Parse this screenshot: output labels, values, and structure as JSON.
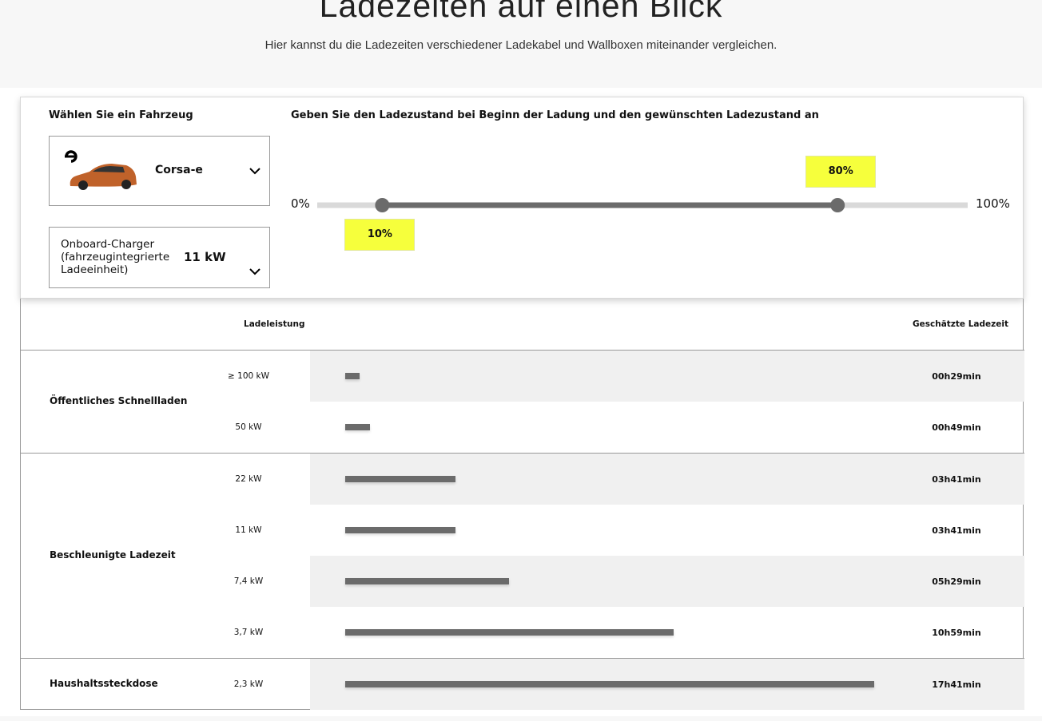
{
  "header": {
    "title": "Ladezeiten auf einen Blick",
    "subtitle": "Hier kannst du die Ladezeiten verschiedener Ladekabel und Wallboxen miteinander vergleichen."
  },
  "vehicle": {
    "label": "Wählen Sie ein Fahrzeug",
    "model": "Corsa-e",
    "charger_name": "Onboard-Charger (fahrzeugintegrierte Ladeeinheit)",
    "charger_power": "11 kW"
  },
  "slider": {
    "label": "Geben Sie den Ladezustand bei Beginn der Ladung und den gewünschten Ladezustand an",
    "min": {
      "value": 0,
      "label": "0%"
    },
    "max": {
      "value": 100,
      "label": "100%"
    },
    "start": {
      "value": 10,
      "label": "10%"
    },
    "end": {
      "value": 80,
      "label": "80%"
    }
  },
  "table": {
    "power_header": "Ladeleistung",
    "time_header": "Geschätzte Ladezeit",
    "groups": [
      {
        "name": "Öffentliches Schnellladen",
        "rows": [
          {
            "power": "≥ 100 kW",
            "time": {
              "value": 29,
              "label": "00h29min"
            }
          },
          {
            "power": "50 kW",
            "time": {
              "value": 49,
              "label": "00h49min"
            }
          }
        ]
      },
      {
        "name": "Beschleunigte Ladezeit",
        "rows": [
          {
            "power": "22 kW",
            "time": {
              "value": 221,
              "label": "03h41min"
            }
          },
          {
            "power": "11 kW",
            "time": {
              "value": 221,
              "label": "03h41min"
            }
          },
          {
            "power": "7,4 kW",
            "time": {
              "value": 329,
              "label": "05h29min"
            }
          },
          {
            "power": "3,7 kW",
            "time": {
              "value": 659,
              "label": "10h59min"
            }
          }
        ]
      },
      {
        "name": "Haushaltssteckdose",
        "rows": [
          {
            "power": "2,3 kW",
            "time": {
              "value": 1061,
              "label": "17h41min"
            }
          }
        ]
      }
    ]
  }
}
